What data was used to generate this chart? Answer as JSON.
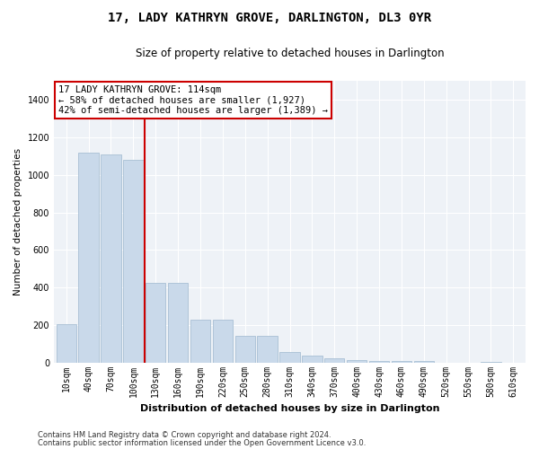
{
  "title": "17, LADY KATHRYN GROVE, DARLINGTON, DL3 0YR",
  "subtitle": "Size of property relative to detached houses in Darlington",
  "xlabel": "Distribution of detached houses by size in Darlington",
  "ylabel": "Number of detached properties",
  "footnote1": "Contains HM Land Registry data © Crown copyright and database right 2024.",
  "footnote2": "Contains public sector information licensed under the Open Government Licence v3.0.",
  "annotation_title": "17 LADY KATHRYN GROVE: 114sqm",
  "annotation_line1": "← 58% of detached houses are smaller (1,927)",
  "annotation_line2": "42% of semi-detached houses are larger (1,389) →",
  "bar_color": "#c9d9ea",
  "bar_edge_color": "#a8bfd4",
  "vline_color": "#cc0000",
  "annotation_box_color": "#ffffff",
  "annotation_box_edge": "#cc0000",
  "background_color": "#eef2f7",
  "categories": [
    "10sqm",
    "40sqm",
    "70sqm",
    "100sqm",
    "130sqm",
    "160sqm",
    "190sqm",
    "220sqm",
    "250sqm",
    "280sqm",
    "310sqm",
    "340sqm",
    "370sqm",
    "400sqm",
    "430sqm",
    "460sqm",
    "490sqm",
    "520sqm",
    "550sqm",
    "580sqm",
    "610sqm"
  ],
  "values": [
    205,
    1120,
    1110,
    1080,
    425,
    425,
    230,
    230,
    140,
    140,
    55,
    35,
    20,
    15,
    10,
    10,
    10,
    0,
    0,
    5,
    0
  ],
  "vline_x": 3.5,
  "ylim": [
    0,
    1500
  ],
  "yticks": [
    0,
    200,
    400,
    600,
    800,
    1000,
    1200,
    1400
  ],
  "title_fontsize": 10,
  "subtitle_fontsize": 8.5,
  "ylabel_fontsize": 7.5,
  "xlabel_fontsize": 8,
  "tick_fontsize": 7,
  "annotation_fontsize": 7.5,
  "footnote_fontsize": 6
}
